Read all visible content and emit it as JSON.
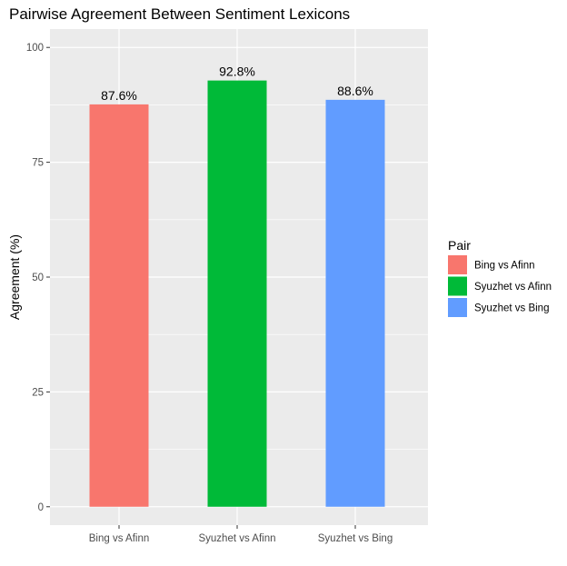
{
  "chart_data": {
    "type": "bar",
    "title": "Pairwise Agreement Between Sentiment Lexicons",
    "xlabel": "",
    "ylabel": "Agreement (%)",
    "ylim": [
      -4,
      104
    ],
    "yticks": [
      0,
      25,
      50,
      75,
      100
    ],
    "categories": [
      "Bing vs Afinn",
      "Syuzhet vs Afinn",
      "Syuzhet vs Bing"
    ],
    "values": [
      87.6,
      92.8,
      88.6
    ],
    "data_labels": [
      "87.6%",
      "92.8%",
      "88.6%"
    ],
    "colors": [
      "#F8766D",
      "#00BA38",
      "#619CFF"
    ],
    "grid": true,
    "panel_background": "#EBEBEB",
    "gridline_color": "#FFFFFF",
    "legend": {
      "title": "Pair",
      "placement": "right",
      "items": [
        "Bing vs Afinn",
        "Syuzhet vs Afinn",
        "Syuzhet vs Bing"
      ]
    }
  }
}
